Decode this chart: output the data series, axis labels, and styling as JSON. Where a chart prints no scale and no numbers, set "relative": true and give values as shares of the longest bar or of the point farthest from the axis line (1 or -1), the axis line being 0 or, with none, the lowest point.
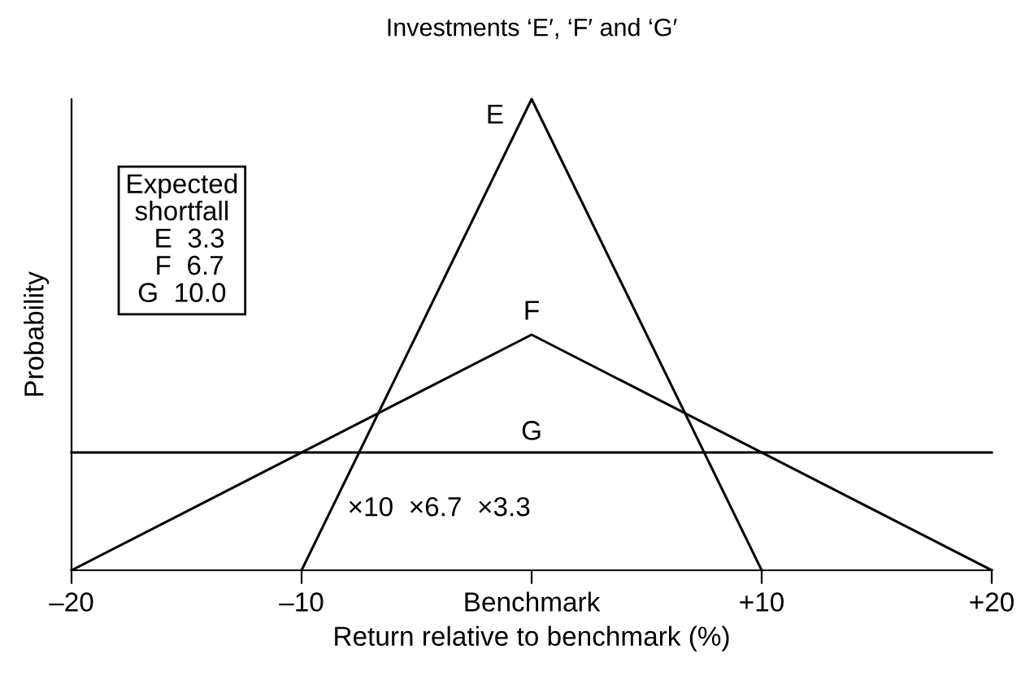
{
  "chart_data": {
    "type": "line",
    "title": "Investments ‘E′, ‘F′ and ‘G′",
    "xlabel": "Return relative to benchmark (%)",
    "ylabel": "Probability",
    "relative": true,
    "xlim": [
      -20,
      20
    ],
    "xticks": [
      {
        "value": -20,
        "label": "–20"
      },
      {
        "value": -10,
        "label": "–10"
      },
      {
        "value": 0,
        "label": "Benchmark"
      },
      {
        "value": 10,
        "label": "+10"
      },
      {
        "value": 20,
        "label": "+20"
      }
    ],
    "tick_labels": "x",
    "grid": false,
    "legend": false,
    "marker": "none",
    "line_style": "solid",
    "series": [
      {
        "name": "E",
        "color": "#000000",
        "x": [
          -10,
          0,
          10
        ],
        "values": [
          0,
          1,
          0
        ]
      },
      {
        "name": "F",
        "color": "#000000",
        "x": [
          -20,
          0,
          20
        ],
        "values": [
          0,
          0.5,
          0
        ]
      },
      {
        "name": "G",
        "color": "#000000",
        "x": [
          -20,
          20
        ],
        "values": [
          0.25,
          0.25
        ]
      }
    ],
    "annotations": [
      "Expected\nshortfall\n  E  3.3\n  F  6.7\nG  10.0",
      "×10  ×6.7  ×3.3"
    ]
  }
}
